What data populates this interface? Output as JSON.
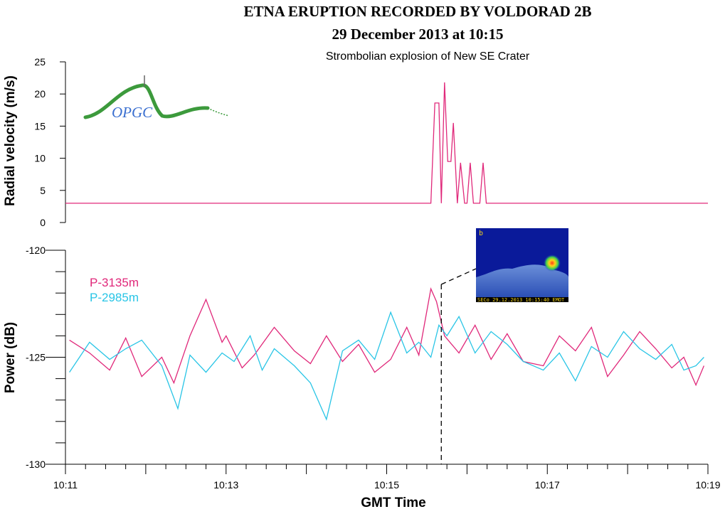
{
  "colors": {
    "series_3135": "#e0287a",
    "series_2985": "#29c5e6",
    "logo_green": "#3c9a3c",
    "logo_blue": "#3a6fd0",
    "inset_bg": "#0a1a9a",
    "inset_label": "#f2d21a"
  },
  "logo": {
    "text": "OPGC"
  },
  "inset": {
    "label": "b",
    "caption": "SECo 29.12.2013 10:15:40 EMOT"
  },
  "chart_data": [
    {
      "id": "velocity",
      "type": "line",
      "title": "ETNA ERUPTION RECORDED BY VOLDORAD 2B",
      "subtitle": "29 December 2013 at 10:15",
      "annotation": "Strombolian explosion of New SE Crater",
      "ylabel": "Radial velocity (m/s)",
      "xlabel": "",
      "xlim": [
        "10:11",
        "10:19"
      ],
      "ylim": [
        0,
        25
      ],
      "y_ticks": [
        "0",
        "5",
        "10",
        "15",
        "20",
        "25"
      ],
      "grid": false,
      "series": [
        {
          "color": "#e0287a",
          "x_minutes": [
            0,
            4.55,
            4.6,
            4.65,
            4.68,
            4.72,
            4.76,
            4.8,
            4.83,
            4.88,
            4.92,
            4.97,
            5.0,
            5.04,
            5.08,
            5.12,
            5.16,
            5.2,
            5.24,
            5.28,
            5.3,
            5.34,
            5.38,
            5.42,
            5.46,
            5.5,
            5.54,
            5.58,
            5.62,
            5.66,
            5.7,
            5.74,
            5.78,
            5.8,
            8.0
          ],
          "values": [
            3,
            3,
            18.6,
            18.6,
            3,
            21.8,
            9.5,
            9.5,
            15.5,
            3,
            9.3,
            3,
            3,
            9.3,
            3,
            3,
            3,
            9.3,
            3,
            3,
            3,
            3,
            3,
            3,
            3,
            3,
            3,
            3,
            3,
            3,
            3,
            3,
            3,
            3,
            3
          ]
        }
      ]
    },
    {
      "id": "power",
      "type": "line",
      "ylabel": "Power (dB)",
      "xlabel": "GMT Time",
      "xlim": [
        "10:11",
        "10:19"
      ],
      "ylim": [
        -130,
        -120
      ],
      "y_ticks": [
        "-130",
        "-125",
        "-120"
      ],
      "x_ticks": [
        "10:11",
        "10:13",
        "10:15",
        "10:17",
        "10:19"
      ],
      "grid": false,
      "legend_position": "top-left",
      "explosion_marker_minutes": 4.68,
      "series": [
        {
          "name": "P-3135m",
          "color": "#e0287a",
          "x_minutes": [
            0.05,
            0.3,
            0.55,
            0.75,
            0.95,
            1.2,
            1.35,
            1.55,
            1.75,
            1.95,
            2.0,
            2.2,
            2.35,
            2.6,
            2.85,
            3.05,
            3.25,
            3.45,
            3.65,
            3.85,
            4.05,
            4.25,
            4.4,
            4.55,
            4.62,
            4.72,
            4.9,
            5.1,
            5.3,
            5.5,
            5.7,
            5.95,
            6.15,
            6.35,
            6.55,
            6.75,
            6.95,
            7.15,
            7.35,
            7.55,
            7.7,
            7.85,
            7.95
          ],
          "values": [
            -124.2,
            -124.8,
            -125.6,
            -124.1,
            -125.9,
            -125.0,
            -126.2,
            -124.0,
            -122.3,
            -124.3,
            -124.0,
            -125.5,
            -124.9,
            -123.6,
            -124.7,
            -125.3,
            -124.0,
            -125.2,
            -124.4,
            -125.7,
            -125.1,
            -123.6,
            -124.9,
            -121.8,
            -122.4,
            -124.0,
            -124.8,
            -123.5,
            -125.1,
            -123.9,
            -125.2,
            -125.4,
            -124.0,
            -124.7,
            -123.6,
            -125.9,
            -124.9,
            -123.8,
            -124.6,
            -125.5,
            -125.0,
            -126.3,
            -125.4
          ]
        },
        {
          "name": "P-2985m",
          "color": "#29c5e6",
          "x_minutes": [
            0.05,
            0.3,
            0.55,
            0.75,
            0.95,
            1.2,
            1.4,
            1.55,
            1.75,
            1.95,
            2.1,
            2.3,
            2.45,
            2.6,
            2.85,
            3.05,
            3.25,
            3.45,
            3.65,
            3.85,
            4.05,
            4.25,
            4.4,
            4.55,
            4.65,
            4.75,
            4.9,
            5.1,
            5.3,
            5.5,
            5.7,
            5.95,
            6.15,
            6.35,
            6.55,
            6.75,
            6.95,
            7.15,
            7.35,
            7.55,
            7.7,
            7.85,
            7.95
          ],
          "values": [
            -125.7,
            -124.3,
            -125.1,
            -124.6,
            -124.2,
            -125.4,
            -127.4,
            -124.9,
            -125.7,
            -124.8,
            -125.2,
            -124.0,
            -125.6,
            -124.6,
            -125.4,
            -126.2,
            -127.9,
            -124.7,
            -124.2,
            -125.1,
            -122.9,
            -124.8,
            -124.3,
            -125.0,
            -123.5,
            -124.0,
            -123.1,
            -124.8,
            -123.8,
            -124.4,
            -125.2,
            -125.6,
            -124.8,
            -126.1,
            -124.5,
            -125.0,
            -123.8,
            -124.6,
            -125.1,
            -124.4,
            -125.6,
            -125.4,
            -125.0
          ]
        }
      ]
    }
  ]
}
